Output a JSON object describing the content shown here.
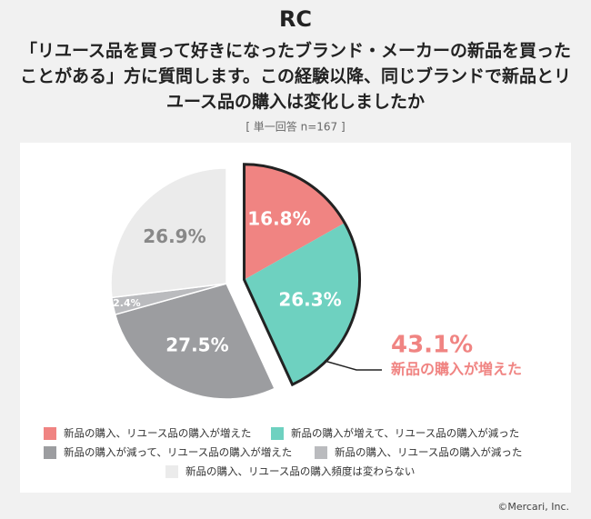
{
  "logo": "RC",
  "chart_data": {
    "type": "pie",
    "title": "「リユース品を買って好きになったブランド・メーカーの新品を買ったことがある」方に質問します。この経験以降、同じブランドで新品とリユース品の購入は変化しましたか",
    "subtitle": "[ 単一回答 n=167 ]",
    "categories": [
      "新品の購入、リユース品の購入が増えた",
      "新品の購入が増えて、リユース品の購入が減った",
      "新品の購入が減って、リユース品の購入が増えた",
      "新品の購入、リユース品の購入が減った",
      "新品の購入、リユース品の購入頻度は変わらない"
    ],
    "values": [
      16.8,
      26.3,
      27.5,
      2.4,
      26.9
    ],
    "value_labels": [
      "16.8%",
      "26.3%",
      "27.5%",
      "2.4%",
      "26.9%"
    ],
    "colors": [
      "#f08482",
      "#6ed1c0",
      "#9c9da0",
      "#babbbe",
      "#ebebeb"
    ],
    "annotation": {
      "value_label": "43.1%",
      "text": "新品の購入が増えた"
    }
  },
  "footer": "©Mercari, Inc."
}
